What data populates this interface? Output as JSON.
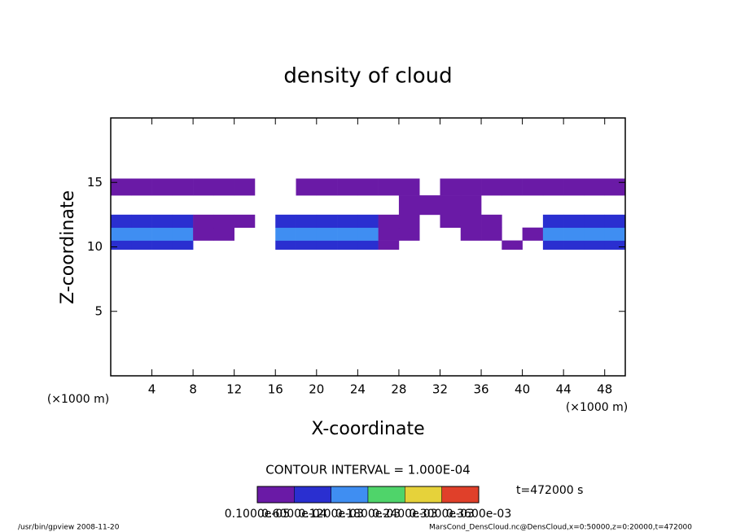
{
  "chart_data": {
    "type": "heatmap",
    "title": "density of cloud",
    "x_label": "X-coordinate",
    "y_label": "Z-coordinate",
    "x_unit": "(×1000 m)",
    "y_unit": "(×1000 m)",
    "xlim": [
      0,
      50
    ],
    "ylim": [
      0,
      20
    ],
    "xticks": [
      4,
      8,
      12,
      16,
      20,
      24,
      28,
      32,
      36,
      40,
      44,
      48
    ],
    "yticks": [
      5,
      10,
      15
    ],
    "x_edges": [
      0,
      2,
      4,
      6,
      8,
      10,
      12,
      14,
      16,
      18,
      20,
      22,
      24,
      26,
      28,
      30,
      32,
      34,
      36,
      38,
      40,
      42,
      44,
      46,
      48,
      50
    ],
    "z_edges": [
      9.8,
      10.5,
      11.5,
      12.5,
      14,
      15.3
    ],
    "values": [
      [
        9e-05,
        9e-05,
        9e-05,
        9e-05,
        null,
        null,
        null,
        null,
        9e-05,
        9e-05,
        9e-05,
        9e-05,
        9e-05,
        3e-05,
        null,
        null,
        null,
        null,
        null,
        3e-05,
        null,
        9e-05,
        9e-05,
        9e-05,
        9e-05
      ],
      [
        0.00016,
        0.00016,
        0.00016,
        0.00016,
        3e-05,
        3e-05,
        null,
        null,
        0.00016,
        0.00016,
        0.00016,
        0.00016,
        0.00016,
        3e-05,
        3e-05,
        null,
        null,
        3e-05,
        3e-05,
        null,
        3e-05,
        0.00016,
        0.00016,
        0.00016,
        0.00016
      ],
      [
        9e-05,
        9e-05,
        9e-05,
        9e-05,
        3e-05,
        3e-05,
        3e-05,
        null,
        9e-05,
        9e-05,
        9e-05,
        9e-05,
        9e-05,
        3e-05,
        3e-05,
        null,
        3e-05,
        3e-05,
        3e-05,
        null,
        null,
        9e-05,
        9e-05,
        9e-05,
        9e-05
      ],
      [
        null,
        null,
        null,
        null,
        null,
        null,
        null,
        null,
        null,
        null,
        null,
        null,
        null,
        null,
        3e-05,
        3e-05,
        3e-05,
        3e-05,
        null,
        null,
        null,
        null,
        null,
        null,
        null
      ],
      [
        3e-05,
        3e-05,
        3e-05,
        3e-05,
        3e-05,
        3e-05,
        3e-05,
        null,
        null,
        3e-05,
        3e-05,
        3e-05,
        3e-05,
        3e-05,
        3e-05,
        null,
        3e-05,
        3e-05,
        3e-05,
        3e-05,
        3e-05,
        3e-05,
        3e-05,
        3e-05,
        3e-05
      ]
    ],
    "colorbar": {
      "ticks": [
        {
          "value": 1e-06,
          "label": "0.1000e-05"
        },
        {
          "value": 6e-05,
          "label": "0.6000e-04"
        },
        {
          "value": 0.00012,
          "label": "0.1200e-03"
        },
        {
          "value": 0.00018,
          "label": "0.1800e-03"
        },
        {
          "value": 0.00024,
          "label": "0.2400e-03"
        },
        {
          "value": 0.0003,
          "label": "0.3000e-03"
        },
        {
          "value": 0.00036,
          "label": "0.3600e-03"
        }
      ],
      "colors": [
        "#6a1aa6",
        "#2a2fd0",
        "#3f8ef2",
        "#4fd46a",
        "#e6d23a",
        "#e0402a"
      ]
    },
    "contour_interval": "CONTOUR INTERVAL = 1.000E-04",
    "time_label": "t=472000 s",
    "footer_left": "/usr/bin/gpview  2008-11-20",
    "footer_right": "MarsCond_DensCloud.nc@DensCloud,x=0:50000,z=0:20000,t=472000"
  }
}
